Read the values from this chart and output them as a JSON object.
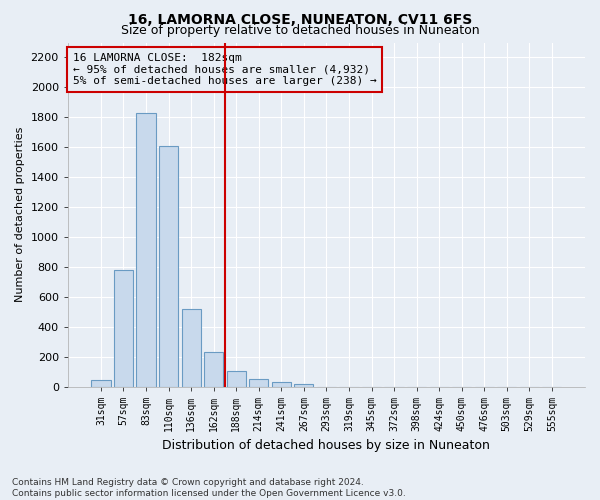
{
  "title": "16, LAMORNA CLOSE, NUNEATON, CV11 6FS",
  "subtitle": "Size of property relative to detached houses in Nuneaton",
  "xlabel": "Distribution of detached houses by size in Nuneaton",
  "ylabel": "Number of detached properties",
  "bar_color": "#c8d9ec",
  "bar_edge_color": "#6a9bc3",
  "bg_color": "#e8eef5",
  "grid_color": "#ffffff",
  "vline_color": "#cc0000",
  "annotation_text": "16 LAMORNA CLOSE:  182sqm\n← 95% of detached houses are smaller (4,932)\n5% of semi-detached houses are larger (238) →",
  "annotation_box_edge_color": "#cc0000",
  "categories": [
    "31sqm",
    "57sqm",
    "83sqm",
    "110sqm",
    "136sqm",
    "162sqm",
    "188sqm",
    "214sqm",
    "241sqm",
    "267sqm",
    "293sqm",
    "319sqm",
    "345sqm",
    "372sqm",
    "398sqm",
    "424sqm",
    "450sqm",
    "476sqm",
    "503sqm",
    "529sqm",
    "555sqm"
  ],
  "values": [
    45,
    780,
    1830,
    1610,
    520,
    235,
    105,
    50,
    35,
    18,
    0,
    0,
    0,
    0,
    0,
    0,
    0,
    0,
    0,
    0,
    0
  ],
  "ylim": [
    0,
    2300
  ],
  "yticks": [
    0,
    200,
    400,
    600,
    800,
    1000,
    1200,
    1400,
    1600,
    1800,
    2000,
    2200
  ],
  "vline_index": 5.5,
  "footnote": "Contains HM Land Registry data © Crown copyright and database right 2024.\nContains public sector information licensed under the Open Government Licence v3.0."
}
